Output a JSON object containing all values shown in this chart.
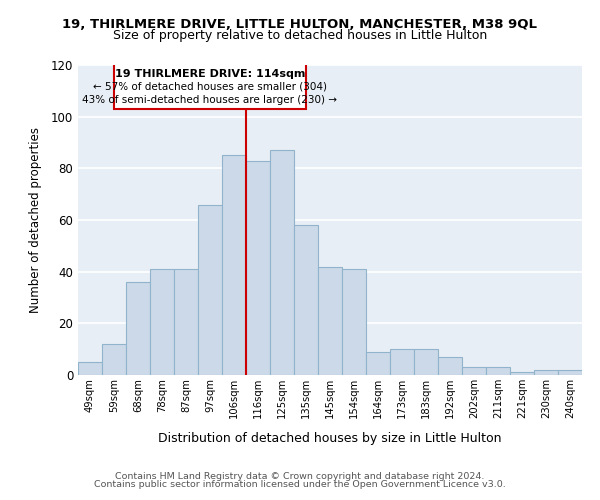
{
  "title1": "19, THIRLMERE DRIVE, LITTLE HULTON, MANCHESTER, M38 9QL",
  "title2": "Size of property relative to detached houses in Little Hulton",
  "xlabel": "Distribution of detached houses by size in Little Hulton",
  "ylabel": "Number of detached properties",
  "categories": [
    "49sqm",
    "59sqm",
    "68sqm",
    "78sqm",
    "87sqm",
    "97sqm",
    "106sqm",
    "116sqm",
    "125sqm",
    "135sqm",
    "145sqm",
    "154sqm",
    "164sqm",
    "173sqm",
    "183sqm",
    "192sqm",
    "202sqm",
    "211sqm",
    "221sqm",
    "230sqm",
    "240sqm"
  ],
  "values": [
    5,
    12,
    36,
    41,
    41,
    66,
    85,
    83,
    87,
    58,
    42,
    41,
    9,
    10,
    10,
    7,
    3,
    3,
    1,
    2,
    2
  ],
  "bar_color": "#ccd9e8",
  "bar_edge_color": "#90b4cc",
  "highlight_index": 7,
  "highlight_line_color": "#cc0000",
  "box_text_line1": "19 THIRLMERE DRIVE: 114sqm",
  "box_text_line2": "← 57% of detached houses are smaller (304)",
  "box_text_line3": "43% of semi-detached houses are larger (230) →",
  "box_color": "#cc0000",
  "ylim": [
    0,
    120
  ],
  "yticks": [
    0,
    20,
    40,
    60,
    80,
    100,
    120
  ],
  "footer1": "Contains HM Land Registry data © Crown copyright and database right 2024.",
  "footer2": "Contains public sector information licensed under the Open Government Licence v3.0.",
  "background_color": "#e8eef5",
  "grid_color": "#ffffff",
  "title_fontsize": 9.5,
  "subtitle_fontsize": 9,
  "footer_fontsize": 6.8
}
